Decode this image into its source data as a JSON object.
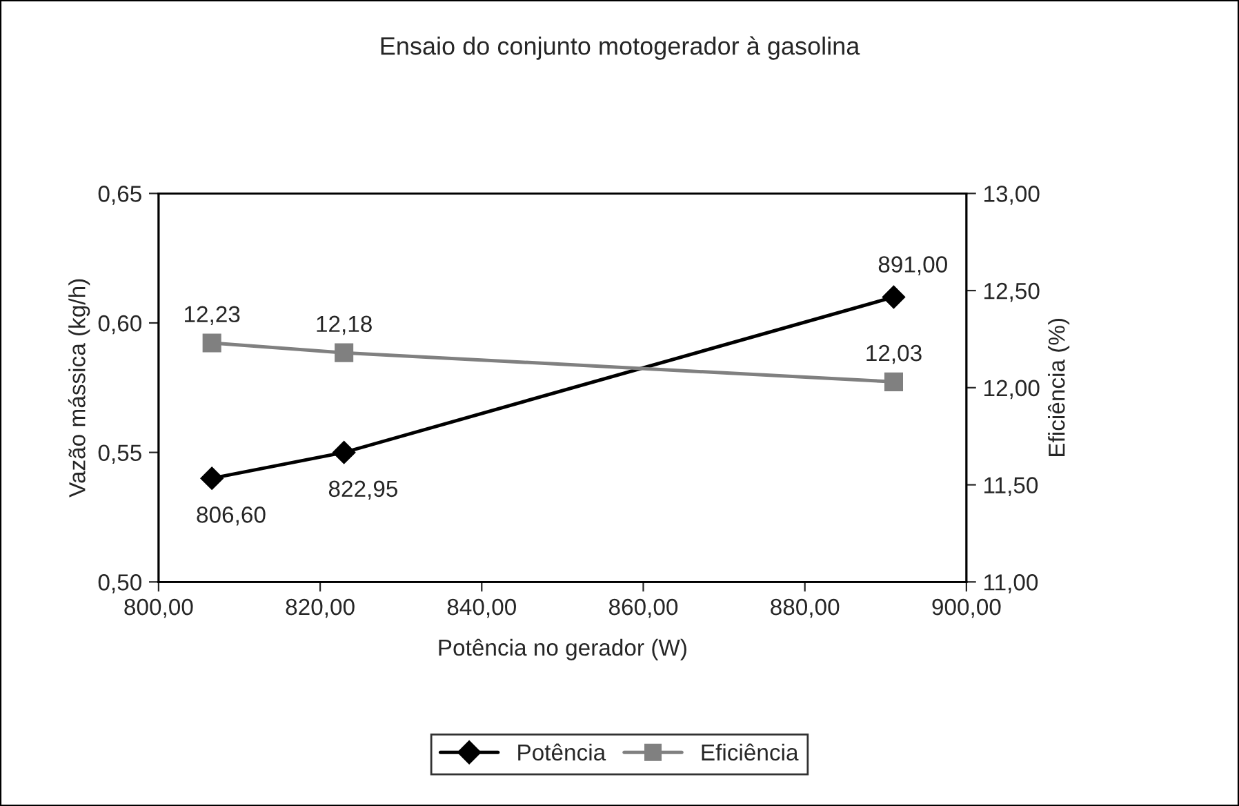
{
  "chart_data": {
    "type": "line",
    "title": "Ensaio do conjunto motogerador à gasolina",
    "xlabel": "Potência no gerador (W)",
    "ylabel": "Vazão mássica (kg/h)",
    "y2label": "Eficiência (%)",
    "x": [
      806.6,
      822.95,
      891.0
    ],
    "series": [
      {
        "name": "Potência",
        "color": "#000000",
        "marker": "diamond",
        "values": [
          0.54,
          0.55,
          0.61
        ]
      },
      {
        "name": "Eficiência",
        "color": "#808080",
        "marker": "square",
        "axis": "y2",
        "values": [
          12.23,
          12.18,
          12.03
        ],
        "value_labels": [
          "12,23",
          "12,18",
          "12,03"
        ]
      }
    ],
    "xlim": [
      800,
      900
    ],
    "xticks": [
      {
        "value": 800,
        "label": "800,00"
      },
      {
        "value": 820,
        "label": "820,00"
      },
      {
        "value": 840,
        "label": "840,00"
      },
      {
        "value": 860,
        "label": "860,00"
      },
      {
        "value": 880,
        "label": "880,00"
      },
      {
        "value": 900,
        "label": "900,00"
      }
    ],
    "ylim": [
      0.5,
      0.65
    ],
    "yticks": [
      {
        "value": 0.5,
        "label": "0,50"
      },
      {
        "value": 0.55,
        "label": "0,55"
      },
      {
        "value": 0.6,
        "label": "0,60"
      },
      {
        "value": 0.65,
        "label": "0,65"
      }
    ],
    "y2lim": [
      11,
      13
    ],
    "y2ticks": [
      {
        "value": 11,
        "label": "11,00"
      },
      {
        "value": 11.5,
        "label": "11,50"
      },
      {
        "value": 12,
        "label": "12,00"
      },
      {
        "value": 12.5,
        "label": "12,50"
      },
      {
        "value": 13,
        "label": "13,00"
      }
    ],
    "annotations": [
      {
        "text": "806,60",
        "x": 806.6,
        "y": 0.54
      },
      {
        "text": "822,95",
        "x": 822.95,
        "y": 0.55
      },
      {
        "text": "891,00",
        "x": 891.0,
        "y": 0.61
      }
    ],
    "grid": false,
    "legend": "bottom",
    "line_style": "solid"
  }
}
